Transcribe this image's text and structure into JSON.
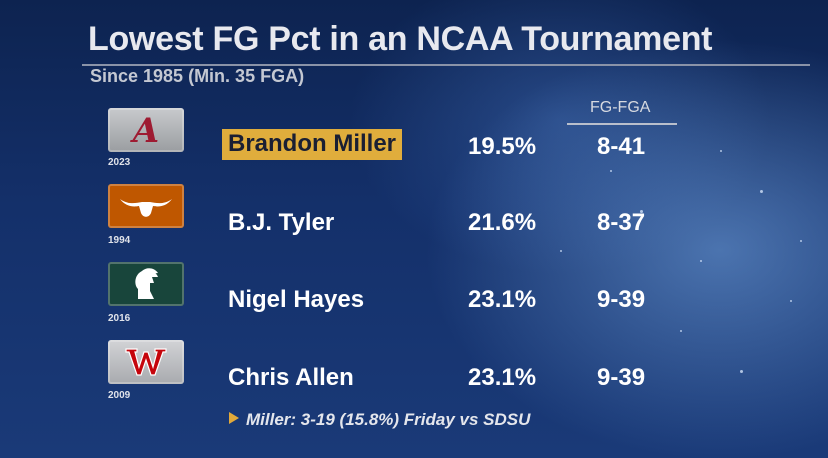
{
  "title": "Lowest FG Pct in an NCAA Tournament",
  "subtitle": "Since 1985 (Min. 35 FGA)",
  "column_header": "FG-FGA",
  "rows": [
    {
      "year": "2023",
      "name": "Brandon Miller",
      "pct": "19.5%",
      "fg": "8-41",
      "logo": "alabama-logo-icon",
      "highlight": true
    },
    {
      "year": "1994",
      "name": "B.J. Tyler",
      "pct": "21.6%",
      "fg": "8-37",
      "logo": "texas-longhorn-logo-icon",
      "highlight": false
    },
    {
      "year": "2016",
      "name": "Nigel Hayes",
      "pct": "23.1%",
      "fg": "9-39",
      "logo": "michigan-state-spartan-logo-icon",
      "highlight": false
    },
    {
      "year": "2009",
      "name": "Chris Allen",
      "pct": "23.1%",
      "fg": "9-39",
      "logo": "wisconsin-w-logo-icon",
      "highlight": false
    }
  ],
  "footnote": "Miller: 3-19 (15.8%) Friday vs SDSU",
  "colors": {
    "highlight": "#e0ad3c",
    "alabama": "#a7a9ac",
    "texas": "#bf5700",
    "michigan_state": "#18453b",
    "wisconsin": "#c5050c"
  }
}
